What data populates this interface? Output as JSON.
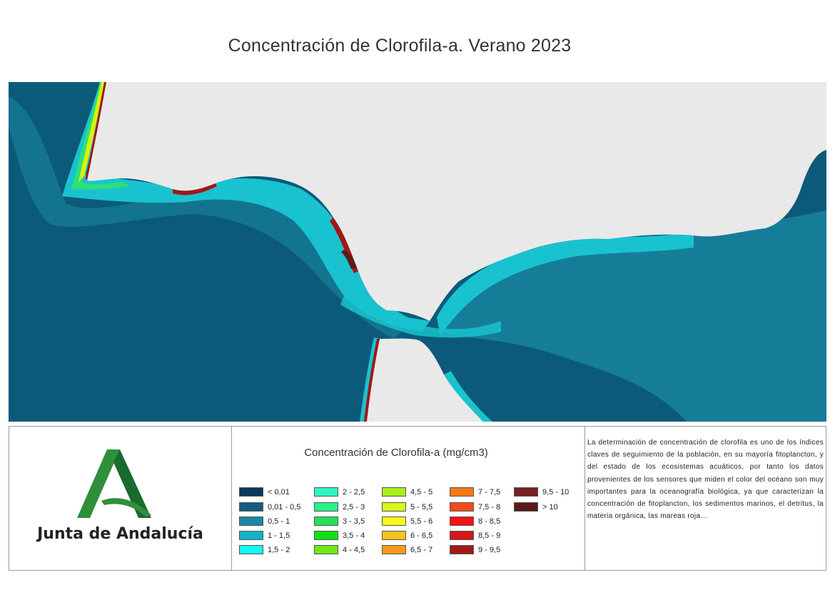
{
  "title": "Concentración de Clorofila-a. Verano 2023",
  "map": {
    "colors": {
      "ocean_deep": "#0c5a79",
      "ocean_mid": "#1a8aa3",
      "land": "#e9e9e9",
      "coastal_cyan": "#19c2cf",
      "coastal_green": "#2de07a",
      "coastal_yellow": "#d9f200",
      "coastal_red": "#a31515",
      "coastal_dark": "#5a1a1a"
    }
  },
  "logo": {
    "text": "Junta de Andalucía",
    "colors": {
      "green_light": "#2f8f3c",
      "green_dark": "#1a6b2e"
    }
  },
  "legend": {
    "title": "Concentración de Clorofila-a (mg/cm3)",
    "columns": [
      [
        {
          "label": "< 0,01",
          "color": "#0b3a5a"
        },
        {
          "label": "0,01 - 0,5",
          "color": "#0f5f82"
        },
        {
          "label": "0,5 - 1",
          "color": "#1a87a5"
        },
        {
          "label": "1 - 1,5",
          "color": "#14b3c8"
        },
        {
          "label": "1,5 - 2",
          "color": "#18f5f5"
        }
      ],
      [
        {
          "label": "2 - 2,5",
          "color": "#2ef5c2"
        },
        {
          "label": "2,5 - 3",
          "color": "#2af08a"
        },
        {
          "label": "3 - 3,5",
          "color": "#25e05a"
        },
        {
          "label": "3,5 - 4",
          "color": "#10e01a"
        },
        {
          "label": "4 - 4,5",
          "color": "#6fe81a"
        }
      ],
      [
        {
          "label": "4,5 - 5",
          "color": "#a7f01a"
        },
        {
          "label": "5 - 5,5",
          "color": "#d8f71a"
        },
        {
          "label": "5,5 - 6",
          "color": "#fafa1a"
        },
        {
          "label": "6 - 6,5",
          "color": "#f5c31a"
        },
        {
          "label": "6,5 - 7",
          "color": "#f59a1a"
        }
      ],
      [
        {
          "label": "7 - 7,5",
          "color": "#f5781a"
        },
        {
          "label": "7,5 - 8",
          "color": "#f54a1a"
        },
        {
          "label": "8 - 8,5",
          "color": "#f51212"
        },
        {
          "label": "8,5 - 9",
          "color": "#d41818"
        },
        {
          "label": "9 - 9,5",
          "color": "#a31a1a"
        }
      ],
      [
        {
          "label": "9,5 - 10",
          "color": "#7a1f1f"
        },
        {
          "label": "> 10",
          "color": "#5a1a1a"
        }
      ]
    ]
  },
  "description": "La determinación de concentración de clorofila es uno de los índices claves de seguimiento de la población, en su mayoría fitoplancton, y del estado de los ecosistemas acuáticos, por tanto los datos provenientes de los sensores que miden el color del océano son muy importantes para la oceanografía biológica, ya que caracterizan la concentración de fitoplancton, los sedimentos marinos, el detritus, la materia orgánica, las mareas roja…"
}
